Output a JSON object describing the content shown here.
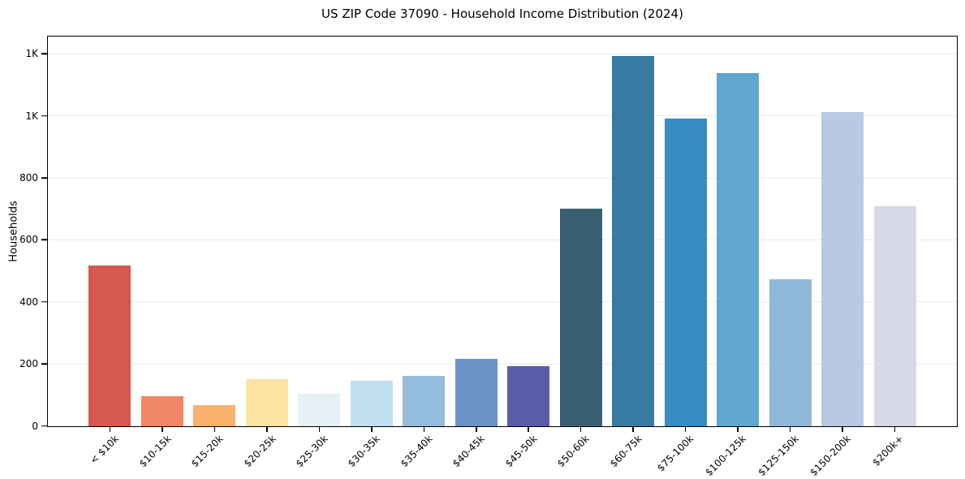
{
  "figure": {
    "background": "#ffffff"
  },
  "chart_data": {
    "type": "bar",
    "title": "US ZIP Code 37090 - Household Income Distribution (2024)",
    "xlabel": "",
    "ylabel": "Households",
    "categories": [
      "< $10k",
      "$10-15k",
      "$15-20k",
      "$20-25k",
      "$25-30k",
      "$30-35k",
      "$35-40k",
      "$40-45k",
      "$45-50k",
      "$50-60k",
      "$60-75k",
      "$75-100k",
      "$100-125k",
      "$125-150k",
      "$150-200k",
      "$200k+"
    ],
    "values": [
      520,
      98,
      69,
      152,
      105,
      147,
      162,
      218,
      195,
      702,
      1195,
      993,
      1140,
      474,
      1013,
      711
    ],
    "bar_colors": [
      "#d6584f",
      "#f08665",
      "#f9b16d",
      "#fce3a4",
      "#e6f1f5",
      "#bfdfee",
      "#93bcdd",
      "#6b92c4",
      "#5a5caa",
      "#3a5f70",
      "#377ba3",
      "#388cc4",
      "#60a7cf",
      "#90b8d8",
      "#b9c9e1",
      "#d7d9e6"
    ],
    "ylim": [
      0,
      1255
    ],
    "yticks": [
      {
        "value": 0,
        "label": "0"
      },
      {
        "value": 200,
        "label": "200"
      },
      {
        "value": 400,
        "label": "400"
      },
      {
        "value": 600,
        "label": "600"
      },
      {
        "value": 800,
        "label": "800"
      },
      {
        "value": 1000,
        "label": "1K"
      },
      {
        "value": 1200,
        "label": "1K"
      }
    ],
    "grid": "horizontal",
    "gridline_color": "#eaeaea",
    "axis_color": "#000000",
    "tick_label_color": "#000000",
    "x_tick_rotation_deg": 45,
    "legend": null
  }
}
